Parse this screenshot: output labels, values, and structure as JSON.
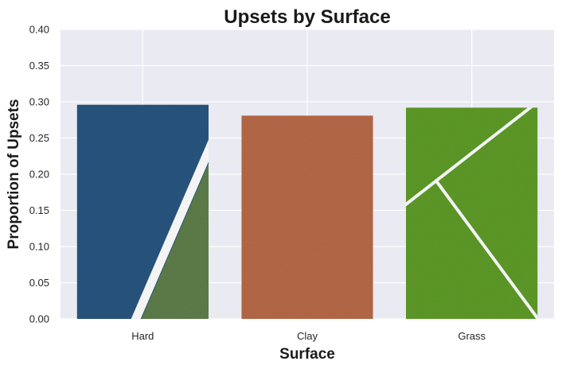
{
  "chart_data": {
    "type": "bar",
    "title": "Upsets by Surface",
    "xlabel": "Surface",
    "ylabel": "Proportion of Upsets",
    "categories": [
      "Hard",
      "Clay",
      "Grass"
    ],
    "values": [
      0.296,
      0.281,
      0.292
    ],
    "ylim": [
      0,
      0.4
    ],
    "yticks": [
      "0.00",
      "0.05",
      "0.10",
      "0.15",
      "0.20",
      "0.25",
      "0.30",
      "0.35",
      "0.40"
    ],
    "grid": true,
    "legend": "none",
    "colors": {
      "plot_background": "#eaeaf2",
      "grid": "#ffffff",
      "hard_court": "#2b5680",
      "hard_court_outer": "#5f7f4c",
      "clay_court": "#b86a48",
      "grass_court": "#5e9b2c",
      "court_line": "#f4f4f4"
    },
    "bar_textures": [
      "hard-court-texture",
      "clay-court-texture",
      "grass-court-texture"
    ]
  }
}
